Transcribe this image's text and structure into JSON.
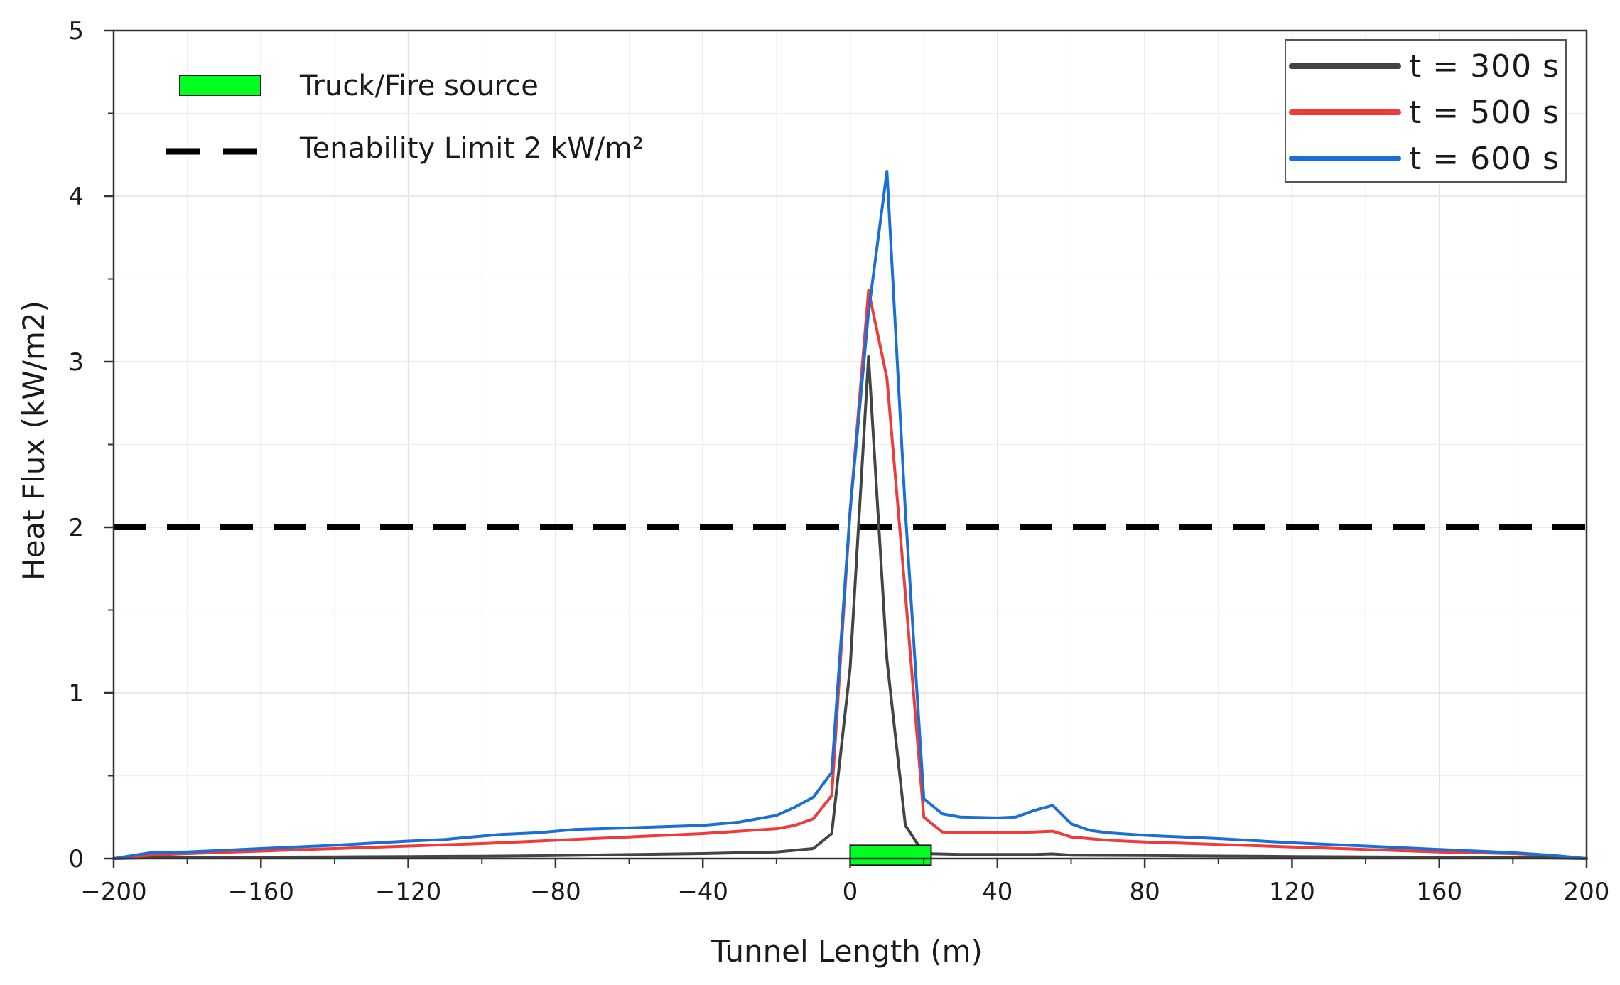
{
  "chart_data": {
    "type": "line",
    "xlabel": "Tunnel Length (m)",
    "ylabel": "Heat Flux (kW/m2)",
    "xlim": [
      -200,
      200
    ],
    "ylim": [
      0,
      5
    ],
    "xticks": [
      -200,
      -160,
      -120,
      -80,
      -40,
      0,
      40,
      80,
      120,
      160,
      200
    ],
    "xtick_labels": [
      "−200",
      "−160",
      "−120",
      "−80",
      "−40",
      "0",
      "40",
      "80",
      "120",
      "160",
      "200"
    ],
    "yticks": [
      0,
      1,
      2,
      3,
      4,
      5
    ],
    "ytick_labels": [
      "0",
      "1",
      "2",
      "3",
      "4",
      "5"
    ],
    "grid": true,
    "legend_position": "top-right",
    "series": [
      {
        "name": "t = 300 s",
        "color": "#444444",
        "x": [
          -200,
          -190,
          -180,
          -160,
          -140,
          -120,
          -100,
          -80,
          -60,
          -40,
          -20,
          -10,
          -5,
          0,
          5,
          10,
          15,
          20,
          30,
          40,
          50,
          55,
          60,
          80,
          100,
          120,
          140,
          160,
          180,
          190,
          200
        ],
        "y": [
          0.0,
          0.005,
          0.007,
          0.008,
          0.01,
          0.012,
          0.014,
          0.018,
          0.024,
          0.03,
          0.04,
          0.06,
          0.15,
          1.15,
          3.03,
          1.2,
          0.2,
          0.03,
          0.025,
          0.025,
          0.025,
          0.028,
          0.02,
          0.018,
          0.015,
          0.012,
          0.01,
          0.008,
          0.006,
          0.004,
          0.0
        ]
      },
      {
        "name": "t = 500 s",
        "color": "#ee3b3b",
        "x": [
          -200,
          -190,
          -180,
          -160,
          -140,
          -120,
          -100,
          -80,
          -60,
          -40,
          -20,
          -15,
          -10,
          -5,
          0,
          5,
          10,
          15,
          20,
          25,
          30,
          40,
          50,
          55,
          60,
          70,
          80,
          100,
          120,
          140,
          160,
          180,
          190,
          200
        ],
        "y": [
          0.0,
          0.02,
          0.03,
          0.045,
          0.06,
          0.075,
          0.09,
          0.11,
          0.13,
          0.15,
          0.18,
          0.2,
          0.24,
          0.38,
          2.1,
          3.43,
          2.9,
          1.6,
          0.25,
          0.16,
          0.155,
          0.155,
          0.16,
          0.165,
          0.13,
          0.11,
          0.1,
          0.085,
          0.07,
          0.055,
          0.04,
          0.03,
          0.02,
          0.0
        ]
      },
      {
        "name": "t = 600 s",
        "color": "#1a6fd6",
        "x": [
          -200,
          -190,
          -180,
          -160,
          -140,
          -120,
          -110,
          -100,
          -95,
          -85,
          -80,
          -75,
          -60,
          -40,
          -30,
          -20,
          -15,
          -10,
          -5,
          0,
          5,
          10,
          15,
          20,
          25,
          30,
          40,
          45,
          50,
          55,
          60,
          65,
          70,
          80,
          100,
          120,
          140,
          160,
          180,
          190,
          200
        ],
        "y": [
          0.0,
          0.035,
          0.04,
          0.06,
          0.08,
          0.105,
          0.115,
          0.135,
          0.145,
          0.155,
          0.165,
          0.175,
          0.185,
          0.2,
          0.22,
          0.26,
          0.31,
          0.37,
          0.52,
          2.1,
          3.3,
          4.15,
          2.1,
          0.36,
          0.27,
          0.25,
          0.245,
          0.25,
          0.29,
          0.32,
          0.21,
          0.17,
          0.155,
          0.14,
          0.12,
          0.095,
          0.075,
          0.055,
          0.035,
          0.02,
          0.0
        ]
      }
    ],
    "reference_line": {
      "name": "Tenability Limit 2 kW/m²",
      "y": 2,
      "style": "dashed",
      "color": "#000000"
    },
    "annotations": [
      {
        "name": "Truck/Fire source",
        "type": "bar",
        "x_start": 0,
        "x_end": 22,
        "y_start": -0.04,
        "y_end": 0.08,
        "color": "#00ff1e"
      }
    ]
  }
}
